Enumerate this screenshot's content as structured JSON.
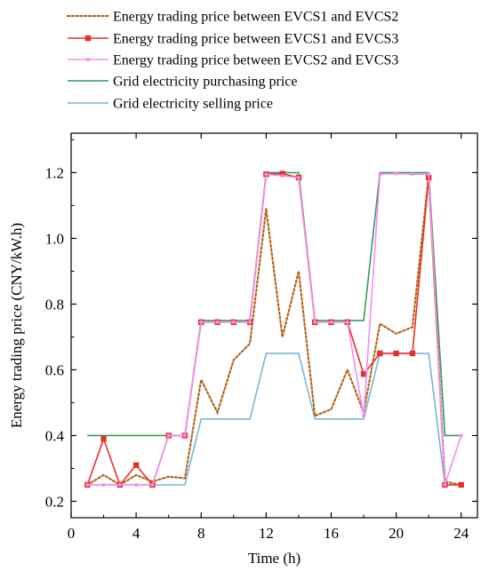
{
  "chart_data": {
    "type": "line",
    "title": "",
    "xlabel": "Time (h)",
    "ylabel": "Energy trading price (CNY/kW.h)",
    "xlim": [
      0,
      25
    ],
    "ylim": [
      0.15,
      1.32
    ],
    "xticks": [
      0,
      4,
      8,
      12,
      16,
      20,
      24
    ],
    "yticks": [
      0.2,
      0.4,
      0.6,
      0.8,
      1.0,
      1.2
    ],
    "xtick_labels": [
      "0",
      "4",
      "8",
      "12",
      "16",
      "20",
      "24"
    ],
    "ytick_labels": [
      "0.2",
      "0.4",
      "0.6",
      "0.8",
      "1.0",
      "1.2"
    ],
    "grid": false,
    "legend_position": "top",
    "x": [
      1,
      2,
      3,
      4,
      5,
      6,
      7,
      8,
      9,
      10,
      11,
      12,
      13,
      14,
      15,
      16,
      17,
      18,
      19,
      20,
      21,
      22,
      23,
      24
    ],
    "series": [
      {
        "name": "Energy trading price between EVCS1 and EVCS2",
        "color": "#b5651d",
        "style": "dotted",
        "marker": "none",
        "values": [
          0.25,
          0.28,
          0.25,
          0.28,
          0.26,
          0.275,
          0.27,
          0.57,
          0.47,
          0.63,
          0.68,
          1.09,
          0.7,
          0.9,
          0.46,
          0.48,
          0.6,
          0.47,
          0.74,
          0.71,
          0.73,
          1.19,
          0.26,
          0.25
        ]
      },
      {
        "name": "Energy trading price between EVCS1 and EVCS3",
        "color": "#e8302a",
        "style": "solid",
        "marker": "square",
        "values": [
          0.25,
          0.39,
          0.25,
          0.31,
          0.25,
          0.4,
          0.4,
          0.745,
          0.745,
          0.745,
          0.745,
          1.195,
          1.197,
          1.185,
          0.745,
          0.745,
          0.745,
          0.587,
          0.65,
          0.65,
          0.65,
          1.185,
          0.25,
          0.25
        ]
      },
      {
        "name": "Energy trading price between EVCS2 and EVCS3",
        "color": "#f58cf0",
        "style": "solid",
        "marker": "small",
        "values": [
          0.25,
          0.25,
          0.25,
          0.25,
          0.25,
          0.4,
          0.4,
          0.745,
          0.745,
          0.745,
          0.745,
          1.195,
          1.19,
          1.185,
          0.745,
          0.745,
          0.745,
          0.46,
          1.195,
          1.197,
          1.195,
          1.195,
          0.25,
          0.4
        ]
      },
      {
        "name": "Grid electricity purchasing price",
        "color": "#2e9e5b",
        "style": "solid",
        "marker": "none",
        "values": [
          0.4,
          0.4,
          0.4,
          0.4,
          0.4,
          0.4,
          0.4,
          0.75,
          0.75,
          0.75,
          0.75,
          1.2,
          1.2,
          1.2,
          0.75,
          0.75,
          0.75,
          0.75,
          1.2,
          1.2,
          1.2,
          1.2,
          0.4,
          0.4
        ]
      },
      {
        "name": "Grid electricity selling price",
        "color": "#7ab3db",
        "style": "solid",
        "marker": "none",
        "values": [
          0.25,
          0.25,
          0.25,
          0.25,
          0.25,
          0.25,
          0.25,
          0.45,
          0.45,
          0.45,
          0.45,
          0.65,
          0.65,
          0.65,
          0.45,
          0.45,
          0.45,
          0.45,
          0.65,
          0.65,
          0.65,
          0.65,
          0.25,
          0.25
        ]
      }
    ]
  }
}
